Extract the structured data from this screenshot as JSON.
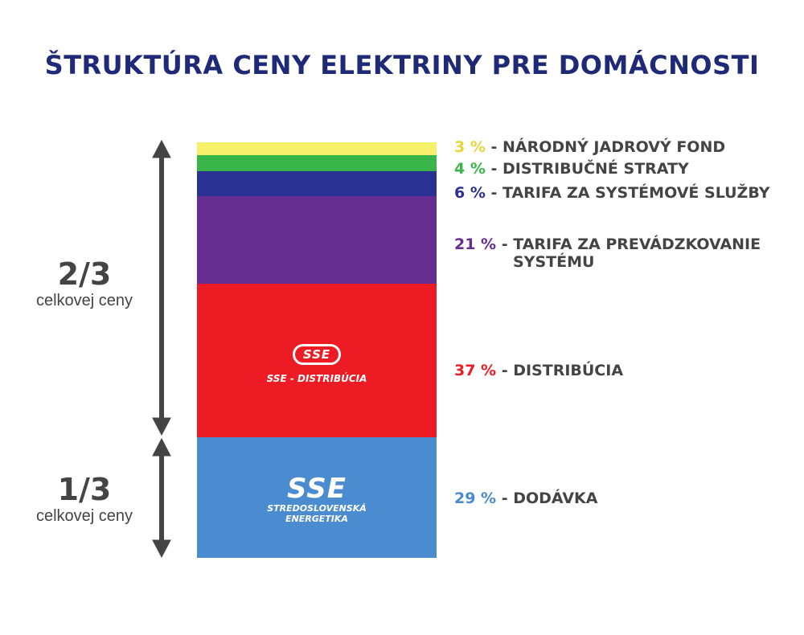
{
  "title": "ŠTRUKTÚRA CENY ELEKTRINY PRE DOMÁCNOSTI",
  "side_labels": {
    "upper": {
      "fraction": "2/3",
      "text": "celkovej ceny"
    },
    "lower": {
      "fraction": "1/3",
      "text": "celkovej ceny"
    }
  },
  "logos": {
    "distribution": {
      "badge": "SSE",
      "sub": "SSE - DISTRIBÚCIA"
    },
    "supply": {
      "badge": "SSE",
      "sub_line1": "STREDOSLOVENSKÁ",
      "sub_line2": "ENERGETIKA"
    }
  },
  "chart_data": {
    "type": "bar",
    "stacked": true,
    "title": "ŠTRUKTÚRA CENY ELEKTRINY PRE DOMÁCNOSTI",
    "unit": "%",
    "segments": [
      {
        "value": 3,
        "pct": "3 %",
        "label": "NÁRODNÝ JADROVÝ FOND",
        "label_line2": "",
        "color": "#f7f06a"
      },
      {
        "value": 4,
        "pct": "4 %",
        "label": "DISTRIBUČNÉ STRATY",
        "label_line2": "",
        "color": "#3ab54a"
      },
      {
        "value": 6,
        "pct": "6 %",
        "label": "TARIFA ZA SYSTÉMOVÉ SLUŽBY",
        "label_line2": "",
        "color": "#2b3192"
      },
      {
        "value": 21,
        "pct": "21 %",
        "label": "TARIFA ZA PREVÁDZKOVANIE",
        "label_line2": "SYSTÉMU",
        "color": "#662d91"
      },
      {
        "value": 37,
        "pct": "37 %",
        "label": "DISTRIBÚCIA",
        "label_line2": "",
        "color": "#ed1c24"
      },
      {
        "value": 29,
        "pct": "29 %",
        "label": "DODÁVKA",
        "label_line2": "",
        "color": "#4a8ccf"
      }
    ],
    "pct_colors": [
      "#e8d53a",
      "#3ab54a",
      "#2b3192",
      "#662d91",
      "#ed1c24",
      "#4a8ccf"
    ],
    "total": 100
  }
}
